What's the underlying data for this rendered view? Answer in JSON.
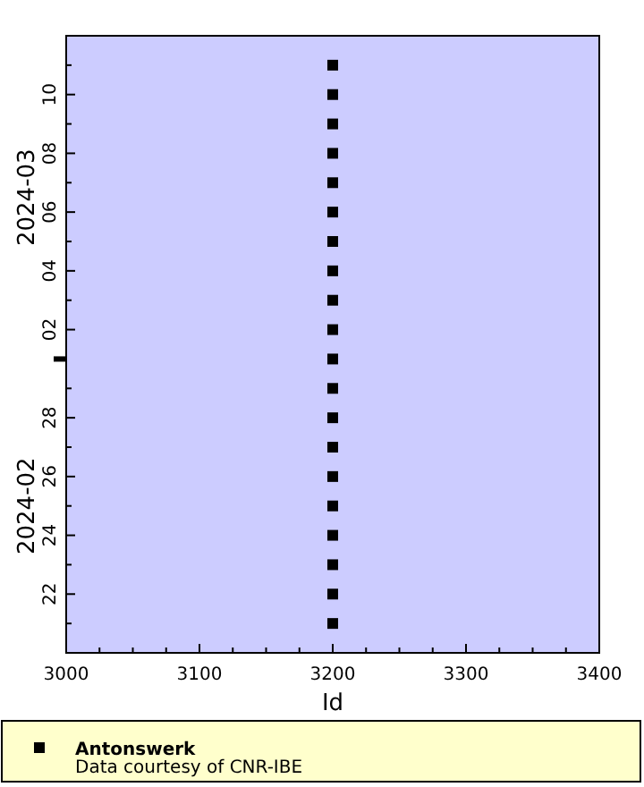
{
  "chart_data": {
    "type": "scatter",
    "orientation": "horizontal",
    "xlabel": "Id",
    "marker": "square",
    "legend": "bottom",
    "grid": false,
    "xlim": [
      3000,
      3400
    ],
    "xticks": [
      3000,
      {
        "value": 3025,
        "label": null
      },
      {
        "value": 3050,
        "label": null
      },
      {
        "value": 3075,
        "label": null
      },
      3100,
      {
        "value": 3125,
        "label": null
      },
      {
        "value": 3150,
        "label": null
      },
      {
        "value": 3175,
        "label": null
      },
      3200,
      {
        "value": 3225,
        "label": null
      },
      {
        "value": 3250,
        "label": null
      },
      {
        "value": 3275,
        "label": null
      },
      3300,
      {
        "value": 3325,
        "label": null
      },
      {
        "value": 3350,
        "label": null
      },
      {
        "value": 3375,
        "label": null
      },
      3400
    ],
    "ylim": [
      "2024-02-20",
      "2024-03-12"
    ],
    "yticks": [
      {
        "value": "2024-02-21",
        "label": null
      },
      {
        "value": "2024-02-22",
        "label": "22"
      },
      {
        "value": "2024-02-23",
        "label": null
      },
      {
        "value": "2024-02-24",
        "label": "24"
      },
      {
        "value": "2024-02-25",
        "label": null
      },
      {
        "value": "2024-02-26",
        "label": "26"
      },
      {
        "value": "2024-02-27",
        "label": null
      },
      {
        "value": "2024-02-28",
        "label": "28"
      },
      {
        "value": "2024-02-29",
        "label": null
      },
      {
        "value": "2024-03-01",
        "label": null
      },
      {
        "value": "2024-03-02",
        "label": "02"
      },
      {
        "value": "2024-03-03",
        "label": null
      },
      {
        "value": "2024-03-04",
        "label": "04"
      },
      {
        "value": "2024-03-05",
        "label": null
      },
      {
        "value": "2024-03-06",
        "label": "06"
      },
      {
        "value": "2024-03-07",
        "label": null
      },
      {
        "value": "2024-03-08",
        "label": "08"
      },
      {
        "value": "2024-03-09",
        "label": null
      },
      {
        "value": "2024-03-10",
        "label": "10"
      },
      {
        "value": "2024-03-11",
        "label": null
      }
    ],
    "annotations": [
      "2024-02",
      "2024-03",
      "Data courtesy of CNR-IBE"
    ],
    "series": [
      {
        "name": "Antonswerk",
        "color": "#000000",
        "x": [
          "2024-02-21",
          "2024-02-22",
          "2024-02-23",
          "2024-02-24",
          "2024-02-25",
          "2024-02-26",
          "2024-02-27",
          "2024-02-28",
          "2024-02-29",
          "2024-03-01",
          "2024-03-02",
          "2024-03-03",
          "2024-03-04",
          "2024-03-05",
          "2024-03-06",
          "2024-03-07",
          "2024-03-08",
          "2024-03-09",
          "2024-03-10",
          "2024-03-11"
        ],
        "values": [
          3200,
          3200,
          3200,
          3200,
          3200,
          3200,
          3200,
          3200,
          3200,
          3200,
          3200,
          3200,
          3200,
          3200,
          3200,
          3200,
          3200,
          3200,
          3200,
          3200
        ]
      }
    ]
  }
}
